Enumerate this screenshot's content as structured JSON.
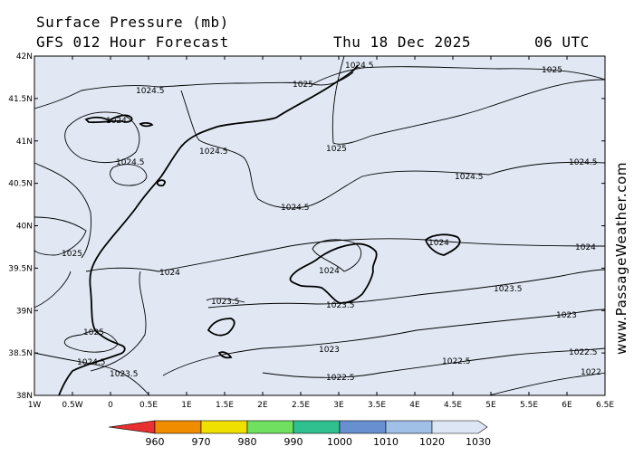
{
  "header": {
    "title": "Surface Pressure (mb)",
    "forecast": "GFS 012 Hour Forecast",
    "date": "Thu 18 Dec 2025",
    "time": "06 UTC"
  },
  "watermark": "www.PassageWeather.com",
  "axes": {
    "lat_labels": [
      "42N",
      "41.5N",
      "41N",
      "40.5N",
      "40N",
      "39.5N",
      "39N",
      "38.5N",
      "38N"
    ],
    "lon_labels": [
      "1W",
      "0.5W",
      "0",
      "0.5E",
      "1E",
      "1.5E",
      "2E",
      "2.5E",
      "3E",
      "3.5E",
      "4E",
      "4.5E",
      "5E",
      "5.5E",
      "6E",
      "6.5E"
    ],
    "lat_range": [
      38,
      42
    ],
    "lon_range": [
      -1,
      6.5
    ]
  },
  "isobar_labels": [
    {
      "text": "1024.5",
      "id": "a"
    },
    {
      "text": "1025",
      "id": "b"
    },
    {
      "text": "1025",
      "id": "c"
    },
    {
      "text": "1024.5",
      "id": "d"
    },
    {
      "text": "1024",
      "id": "e"
    },
    {
      "text": "1024.5",
      "id": "f"
    },
    {
      "text": "1025",
      "id": "g"
    },
    {
      "text": "1024.5",
      "id": "h"
    },
    {
      "text": "1024.5",
      "id": "i"
    },
    {
      "text": "1024.5",
      "id": "j"
    },
    {
      "text": "1024.5",
      "id": "k"
    },
    {
      "text": "1025",
      "id": "l"
    },
    {
      "text": "1024",
      "id": "m"
    },
    {
      "text": "1024",
      "id": "n"
    },
    {
      "text": "1024",
      "id": "o"
    },
    {
      "text": "1024",
      "id": "p"
    },
    {
      "text": "1023.5",
      "id": "q"
    },
    {
      "text": "1023.5",
      "id": "r"
    },
    {
      "text": "1023.5",
      "id": "s"
    },
    {
      "text": "1023",
      "id": "t"
    },
    {
      "text": "1023",
      "id": "u"
    },
    {
      "text": "1025",
      "id": "v"
    },
    {
      "text": "1024.5",
      "id": "w"
    },
    {
      "text": "1022.5",
      "id": "x"
    },
    {
      "text": "1022.5",
      "id": "y"
    },
    {
      "text": "1023.5",
      "id": "z"
    },
    {
      "text": "1022.5",
      "id": "aa"
    },
    {
      "text": "1022",
      "id": "ab"
    },
    {
      "text": "1024",
      "id": "ac"
    }
  ],
  "colorbar": {
    "labels": [
      "960",
      "970",
      "980",
      "990",
      "1000",
      "1010",
      "1020",
      "1030"
    ],
    "colors": [
      "#e83030",
      "#f08c00",
      "#f0e000",
      "#70e060",
      "#30c090",
      "#6890d0",
      "#a0c0e8",
      "#dde6f4"
    ]
  },
  "colors": {
    "map_background": "#e1e8f4",
    "lines": "#000000"
  }
}
